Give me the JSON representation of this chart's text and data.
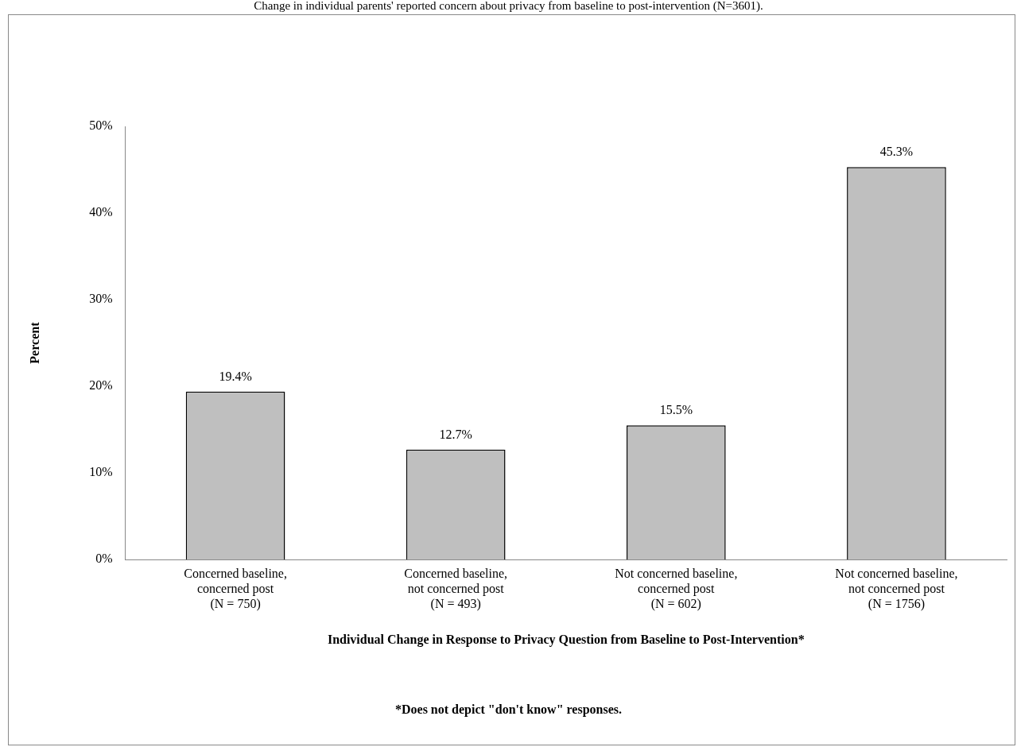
{
  "chart_data": {
    "type": "bar",
    "title": "Change in individual parents' reported concern about privacy from baseline to post-intervention (N=3601).",
    "categories": [
      "Concerned baseline,\nconcerned post\n(N = 750)",
      "Concerned baseline,\nnot concerned post\n(N = 493)",
      "Not concerned baseline,\nconcerned post\n(N = 602)",
      "Not concerned baseline,\nnot concerned post\n(N = 1756)"
    ],
    "values": [
      19.4,
      12.7,
      15.5,
      45.3
    ],
    "value_labels": [
      "19.4%",
      "12.7%",
      "15.5%",
      "45.3%"
    ],
    "color": "#bfbfbf",
    "xlabel": "Individual Change in Response to Privacy Question from Baseline to Post-Intervention*",
    "ylabel": "Percent",
    "annotations": [
      "*Does not depict \"don't know\" responses."
    ],
    "ylim": [
      0,
      50
    ],
    "yticks": [
      {
        "value": 0,
        "label": "0%"
      },
      {
        "value": 10,
        "label": "10%"
      },
      {
        "value": 20,
        "label": "20%"
      },
      {
        "value": 30,
        "label": "30%"
      },
      {
        "value": 40,
        "label": "40%"
      },
      {
        "value": 50,
        "label": "50%"
      }
    ],
    "grid": false,
    "legend": false
  }
}
